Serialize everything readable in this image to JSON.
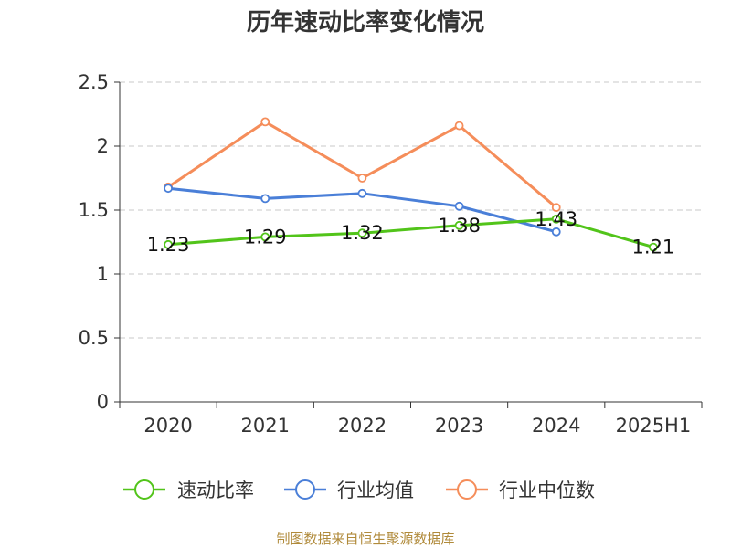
{
  "chart_data": {
    "type": "line",
    "title": "历年速动比率变化情况",
    "categories": [
      "2020",
      "2021",
      "2022",
      "2023",
      "2024",
      "2025H1"
    ],
    "ylim": [
      0,
      2.5
    ],
    "yticks": [
      "0",
      "0.5",
      "1",
      "1.5",
      "2",
      "2.5"
    ],
    "grid": true,
    "legend_position": "bottom",
    "series": [
      {
        "name": "速动比率",
        "color": "#52c41a",
        "values": [
          1.23,
          1.29,
          1.32,
          1.38,
          1.43,
          1.21
        ],
        "labels": [
          "1.23",
          "1.29",
          "1.32",
          "1.38",
          "1.43",
          "1.21"
        ]
      },
      {
        "name": "行业均值",
        "color": "#4a7fd8",
        "values": [
          1.67,
          1.59,
          1.63,
          1.53,
          1.33,
          null
        ]
      },
      {
        "name": "行业中位数",
        "color": "#f58d5a",
        "values": [
          1.68,
          2.19,
          1.75,
          2.16,
          1.52,
          null
        ]
      }
    ]
  },
  "source": "制图数据来自恒生聚源数据库"
}
